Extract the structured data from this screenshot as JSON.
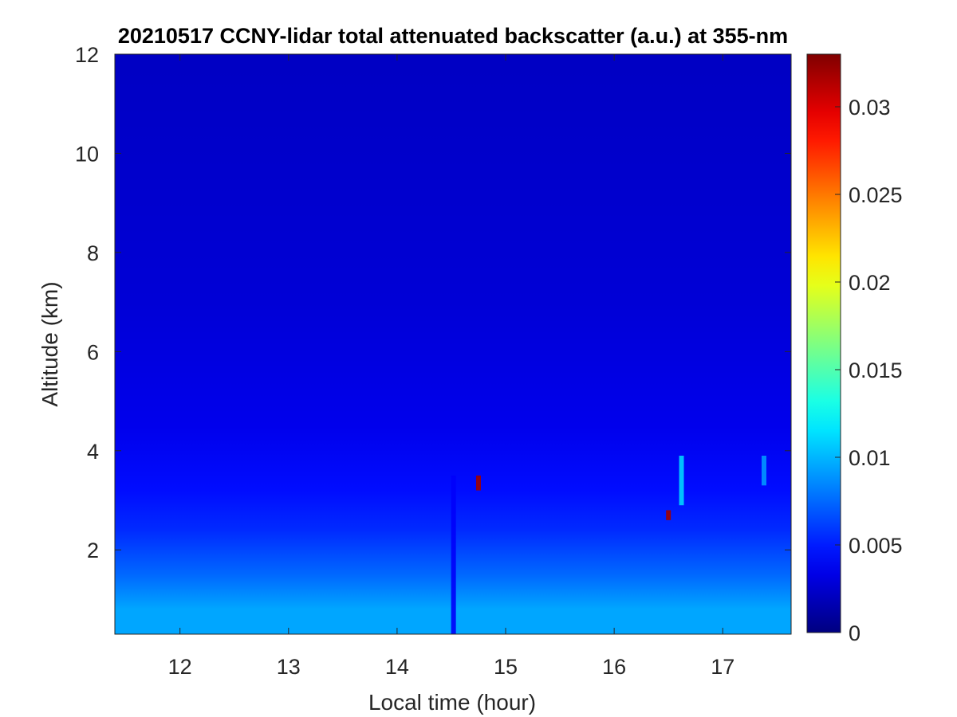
{
  "chart_data": {
    "type": "heatmap",
    "title": "20210517 CCNY-lidar total attenuated backscatter (a.u.) at 355-nm",
    "xlabel": "Local time (hour)",
    "ylabel": "Altitude (km)",
    "xlim": [
      11.4,
      17.63
    ],
    "ylim": [
      0.3,
      12
    ],
    "x_ticks": [
      12,
      13,
      14,
      15,
      16,
      17
    ],
    "x_tick_labels": [
      "12",
      "13",
      "14",
      "15",
      "16",
      "17"
    ],
    "y_ticks": [
      2,
      4,
      6,
      8,
      10,
      12
    ],
    "y_tick_labels": [
      "2",
      "4",
      "6",
      "8",
      "10",
      "12"
    ],
    "colorbar": {
      "colormap": "jet",
      "clim": [
        0,
        0.033
      ],
      "ticks": [
        0,
        0.005,
        0.01,
        0.015,
        0.02,
        0.025,
        0.03
      ],
      "tick_labels": [
        "0",
        "0.005",
        "0.01",
        "0.015",
        "0.02",
        "0.025",
        "0.03"
      ]
    },
    "background_profile": [
      {
        "altitude_km": 0.3,
        "value": 0.0095
      },
      {
        "altitude_km": 0.8,
        "value": 0.0095
      },
      {
        "altitude_km": 1.5,
        "value": 0.0075
      },
      {
        "altitude_km": 2.4,
        "value": 0.0055
      },
      {
        "altitude_km": 3.2,
        "value": 0.0045
      },
      {
        "altitude_km": 4.5,
        "value": 0.0035
      },
      {
        "altitude_km": 7.0,
        "value": 0.0028
      },
      {
        "altitude_km": 12.0,
        "value": 0.0022
      }
    ],
    "features": [
      {
        "time_hour": 14.52,
        "altitude_km_from": 0.3,
        "altitude_km_to": 3.5,
        "value": 0.004
      },
      {
        "time_hour": 14.75,
        "altitude_km_from": 3.2,
        "altitude_km_to": 3.5,
        "value": 0.032
      },
      {
        "time_hour": 16.5,
        "altitude_km_from": 2.6,
        "altitude_km_to": 2.8,
        "value": 0.032
      },
      {
        "time_hour": 16.62,
        "altitude_km_from": 2.9,
        "altitude_km_to": 3.9,
        "value": 0.011
      },
      {
        "time_hour": 17.38,
        "altitude_km_from": 3.3,
        "altitude_km_to": 3.9,
        "value": 0.009
      }
    ]
  }
}
